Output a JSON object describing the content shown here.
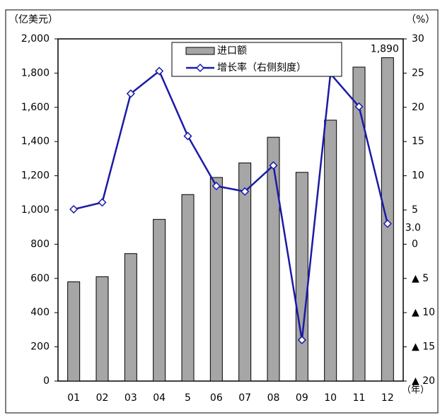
{
  "chart_data": {
    "type": "bar",
    "y_unit": "（亿美元）",
    "y2_unit": "（%）",
    "x_unit": "（年）",
    "categories": [
      "01",
      "02",
      "03",
      "04",
      "5",
      "06",
      "07",
      "08",
      "09",
      "10",
      "11",
      "12"
    ],
    "series": [
      {
        "name": "进口额",
        "type": "bar",
        "color": "#a6a6a6",
        "values": [
          580,
          610,
          745,
          945,
          1090,
          1190,
          1275,
          1425,
          1220,
          1525,
          1835,
          1890
        ],
        "value_labels": [
          null,
          null,
          null,
          null,
          null,
          null,
          null,
          null,
          null,
          null,
          null,
          "1,890"
        ]
      },
      {
        "name": "增长率（右侧刻度）",
        "type": "line",
        "axis": "y2",
        "color": "#1a1aa8",
        "values": [
          5.1,
          6.1,
          22.0,
          25.3,
          15.8,
          8.5,
          7.7,
          11.5,
          -14.0,
          24.9,
          20.1,
          3.0
        ],
        "value_labels": [
          null,
          null,
          null,
          null,
          null,
          null,
          null,
          null,
          null,
          null,
          null,
          "3.0"
        ]
      }
    ],
    "ylim": [
      0,
      2000
    ],
    "yticks": [
      0,
      200,
      400,
      600,
      800,
      {
        "value": 1000,
        "label": "1,000"
      },
      {
        "value": 1200,
        "label": "1,200"
      },
      {
        "value": 1400,
        "label": "1,400"
      },
      {
        "value": 1600,
        "label": "1,600"
      },
      {
        "value": 1800,
        "label": "1,800"
      },
      {
        "value": 2000,
        "label": "2,000"
      }
    ],
    "y2lim": [
      -20,
      30
    ],
    "y2ticks": [
      {
        "value": -20,
        "label": "▲ 20"
      },
      {
        "value": -15,
        "label": "▲ 15"
      },
      {
        "value": -10,
        "label": "▲ 10"
      },
      {
        "value": -5,
        "label": "▲ 5"
      },
      0,
      5,
      10,
      15,
      20,
      25,
      30
    ],
    "legend": "top-center"
  }
}
